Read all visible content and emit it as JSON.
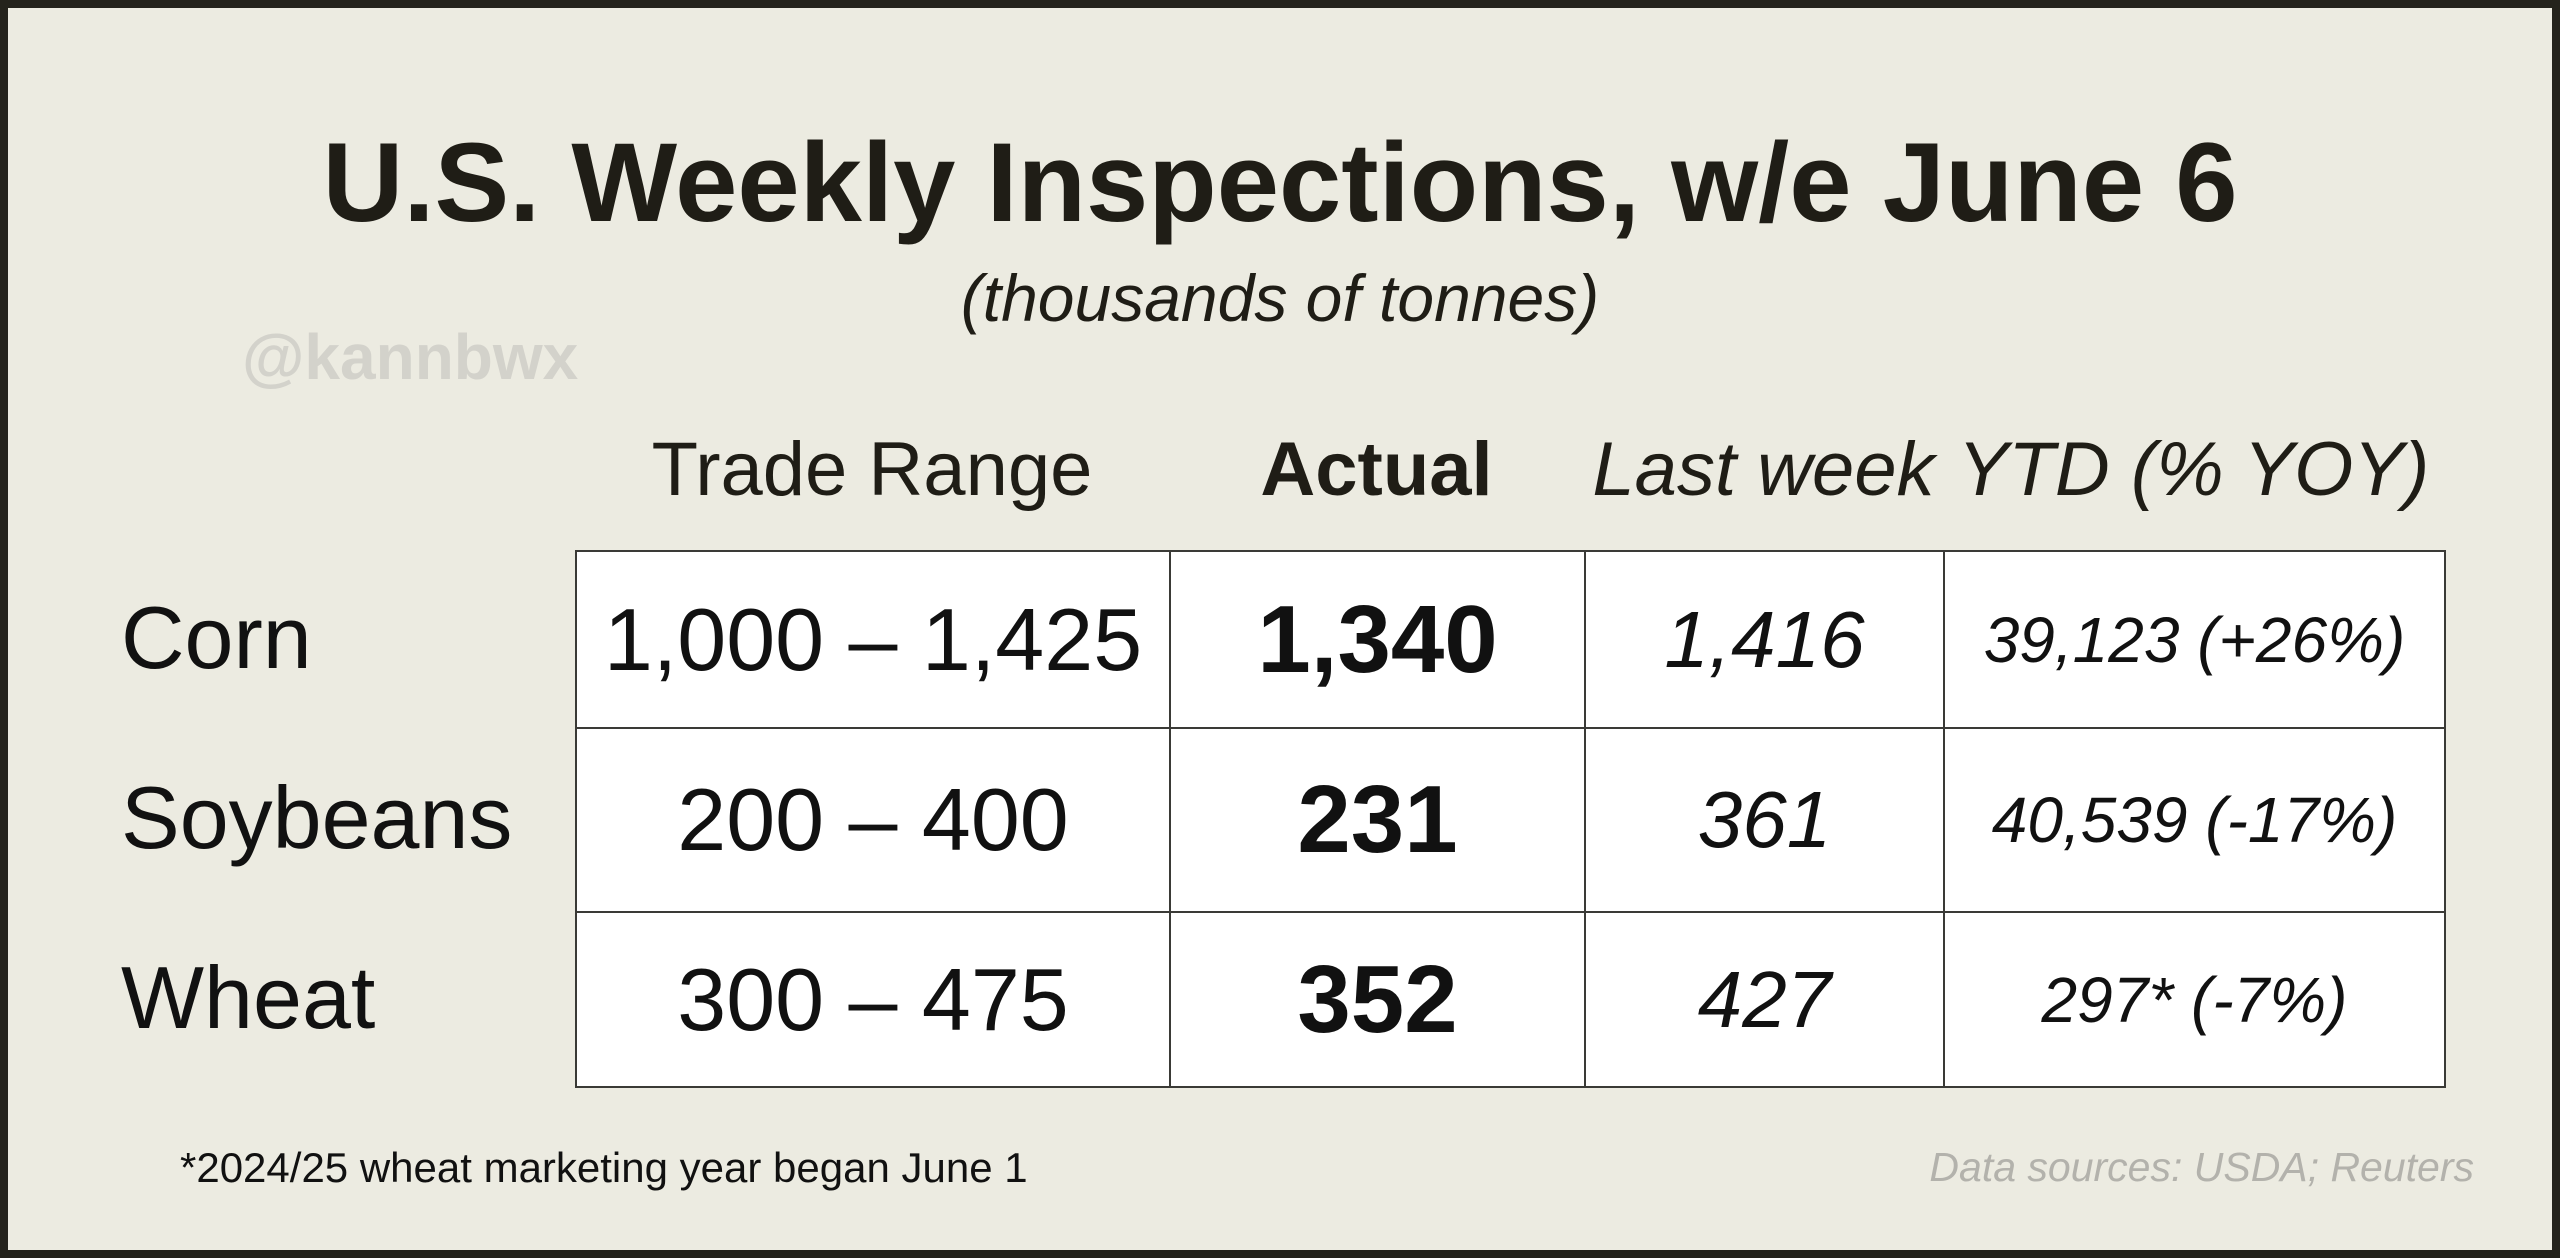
{
  "header": {
    "title": "U.S. Weekly Inspections, w/e June 6",
    "subtitle": "(thousands of tonnes)",
    "watermark": "@kannbwx"
  },
  "table": {
    "columns": [
      "Trade Range",
      "Actual",
      "Last week",
      "YTD (% YOY)"
    ],
    "rows": [
      {
        "label": "Corn",
        "cells": [
          "1,000 – 1,425",
          "1,340",
          "1,416",
          "39,123 (+26%)"
        ]
      },
      {
        "label": "Soybeans",
        "cells": [
          "200 – 400",
          "231",
          "361",
          "40,539 (-17%)"
        ]
      },
      {
        "label": "Wheat",
        "cells": [
          "300 – 475",
          "352",
          "427",
          "297* (-7%)"
        ]
      }
    ]
  },
  "footnote": "*2024/25 wheat marketing year began June 1",
  "source": "Data sources: USDA; Reuters"
}
